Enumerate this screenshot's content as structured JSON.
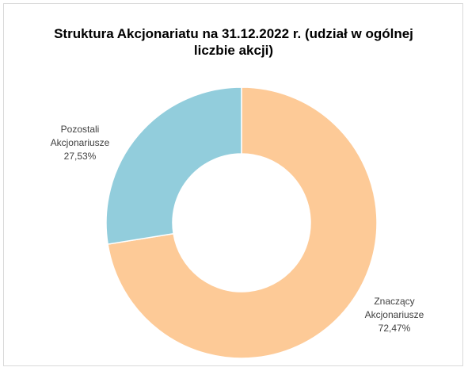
{
  "chart_data": {
    "type": "donut",
    "title": "Struktura Akcjonariatu na 31.12.2022 r.  (udział w ogólnej liczbie akcji)",
    "categories": [
      "Znaczący Akcjonariusze",
      "Pozostali Akcjonariusze"
    ],
    "values": [
      72.47,
      27.53
    ],
    "value_labels": [
      "72,47%",
      "27,53%"
    ],
    "colors": [
      "#fdca97",
      "#92cddc"
    ]
  }
}
